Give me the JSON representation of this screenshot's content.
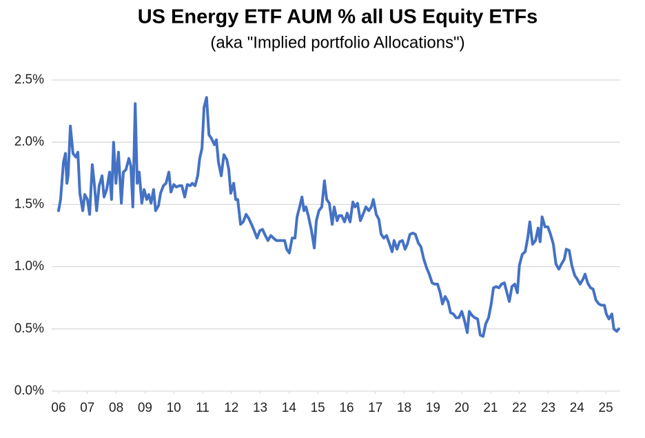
{
  "chart_data": {
    "type": "line",
    "title": "US Energy ETF AUM % all US Equity ETFs",
    "subtitle": "(aka \"Implied portfolio Allocations\")",
    "color": "#4472c4",
    "grid": true,
    "x": [
      2006.0,
      2006.07,
      2006.17,
      2006.24,
      2006.29,
      2006.33,
      2006.41,
      2006.5,
      2006.6,
      2006.67,
      2006.74,
      2006.84,
      2006.91,
      2007.0,
      2007.08,
      2007.17,
      2007.24,
      2007.32,
      2007.41,
      2007.51,
      2007.58,
      2007.67,
      2007.77,
      2007.84,
      2007.91,
      2007.99,
      2008.08,
      2008.18,
      2008.25,
      2008.34,
      2008.44,
      2008.51,
      2008.58,
      2008.66,
      2008.73,
      2008.8,
      2008.89,
      2008.97,
      2009.06,
      2009.13,
      2009.21,
      2009.3,
      2009.37,
      2009.47,
      2009.54,
      2009.64,
      2009.73,
      2009.83,
      2009.9,
      2010.0,
      2010.09,
      2010.19,
      2010.28,
      2010.38,
      2010.47,
      2010.57,
      2010.64,
      2010.74,
      2010.83,
      2010.9,
      2010.98,
      2011.05,
      2011.14,
      2011.22,
      2011.31,
      2011.41,
      2011.48,
      2011.55,
      2011.65,
      2011.74,
      2011.84,
      2011.91,
      2011.98,
      2012.08,
      2012.15,
      2012.22,
      2012.32,
      2012.41,
      2012.51,
      2012.6,
      2012.7,
      2012.79,
      2012.89,
      2012.99,
      2013.08,
      2013.18,
      2013.27,
      2013.37,
      2013.46,
      2013.56,
      2013.66,
      2013.75,
      2013.85,
      2013.92,
      2014.01,
      2014.11,
      2014.21,
      2014.28,
      2014.37,
      2014.45,
      2014.52,
      2014.59,
      2014.68,
      2014.78,
      2014.88,
      2014.95,
      2015.04,
      2015.14,
      2015.23,
      2015.31,
      2015.4,
      2015.5,
      2015.57,
      2015.67,
      2015.74,
      2015.83,
      2015.93,
      2016.02,
      2016.12,
      2016.22,
      2016.29,
      2016.38,
      2016.48,
      2016.57,
      2016.67,
      2016.77,
      2016.86,
      2016.93,
      2017.03,
      2017.12,
      2017.2,
      2017.29,
      2017.39,
      2017.48,
      2017.58,
      2017.65,
      2017.75,
      2017.84,
      2017.94,
      2018.03,
      2018.11,
      2018.2,
      2018.3,
      2018.39,
      2018.49,
      2018.58,
      2018.68,
      2018.78,
      2018.87,
      2018.97,
      2019.06,
      2019.16,
      2019.25,
      2019.33,
      2019.42,
      2019.52,
      2019.61,
      2019.71,
      2019.8,
      2019.9,
      2020.0,
      2020.09,
      2020.19,
      2020.26,
      2020.35,
      2020.45,
      2020.55,
      2020.64,
      2020.74,
      2020.83,
      2020.93,
      2021.02,
      2021.1,
      2021.19,
      2021.29,
      2021.38,
      2021.48,
      2021.57,
      2021.65,
      2021.74,
      2021.84,
      2021.93,
      2022.0,
      2022.1,
      2022.2,
      2022.29,
      2022.36,
      2022.46,
      2022.56,
      2022.65,
      2022.72,
      2022.79,
      2022.89,
      2022.99,
      2023.08,
      2023.18,
      2023.27,
      2023.37,
      2023.46,
      2023.56,
      2023.63,
      2023.73,
      2023.82,
      2023.92,
      2024.01,
      2024.11,
      2024.21,
      2024.28,
      2024.37,
      2024.47,
      2024.56,
      2024.66,
      2024.76,
      2024.85,
      2024.95,
      2025.02,
      2025.11,
      2025.21,
      2025.28,
      2025.38,
      2025.45
    ],
    "values": [
      1.45,
      1.54,
      1.84,
      1.91,
      1.67,
      1.73,
      2.13,
      1.91,
      1.88,
      1.92,
      1.59,
      1.45,
      1.58,
      1.54,
      1.42,
      1.82,
      1.67,
      1.45,
      1.65,
      1.73,
      1.56,
      1.62,
      1.76,
      1.54,
      2.0,
      1.67,
      1.92,
      1.51,
      1.76,
      1.78,
      1.87,
      1.81,
      1.48,
      2.31,
      1.67,
      1.76,
      1.51,
      1.62,
      1.54,
      1.58,
      1.51,
      1.62,
      1.45,
      1.49,
      1.59,
      1.65,
      1.67,
      1.76,
      1.6,
      1.66,
      1.64,
      1.65,
      1.65,
      1.56,
      1.66,
      1.65,
      1.67,
      1.65,
      1.73,
      1.87,
      1.95,
      2.28,
      2.36,
      2.06,
      2.03,
      1.98,
      2.02,
      1.84,
      1.73,
      1.9,
      1.86,
      1.78,
      1.59,
      1.67,
      1.54,
      1.54,
      1.34,
      1.36,
      1.42,
      1.39,
      1.34,
      1.29,
      1.23,
      1.29,
      1.3,
      1.25,
      1.21,
      1.25,
      1.23,
      1.21,
      1.21,
      1.21,
      1.21,
      1.14,
      1.11,
      1.23,
      1.23,
      1.4,
      1.48,
      1.56,
      1.45,
      1.48,
      1.4,
      1.29,
      1.15,
      1.37,
      1.45,
      1.48,
      1.69,
      1.54,
      1.51,
      1.34,
      1.48,
      1.37,
      1.41,
      1.41,
      1.36,
      1.43,
      1.36,
      1.52,
      1.48,
      1.51,
      1.37,
      1.42,
      1.48,
      1.45,
      1.48,
      1.54,
      1.42,
      1.38,
      1.26,
      1.23,
      1.25,
      1.19,
      1.12,
      1.21,
      1.14,
      1.2,
      1.21,
      1.14,
      1.18,
      1.26,
      1.27,
      1.26,
      1.19,
      1.16,
      1.06,
      0.99,
      0.94,
      0.87,
      0.86,
      0.86,
      0.79,
      0.7,
      0.76,
      0.72,
      0.63,
      0.62,
      0.59,
      0.59,
      0.64,
      0.57,
      0.47,
      0.64,
      0.61,
      0.59,
      0.58,
      0.45,
      0.44,
      0.54,
      0.59,
      0.7,
      0.83,
      0.84,
      0.83,
      0.86,
      0.87,
      0.79,
      0.72,
      0.84,
      0.86,
      0.79,
      1.01,
      1.1,
      1.12,
      1.23,
      1.36,
      1.18,
      1.21,
      1.31,
      1.2,
      1.4,
      1.32,
      1.32,
      1.26,
      1.18,
      1.02,
      0.98,
      1.02,
      1.06,
      1.14,
      1.13,
      1.01,
      0.93,
      0.9,
      0.86,
      0.9,
      0.94,
      0.87,
      0.83,
      0.82,
      0.73,
      0.7,
      0.69,
      0.69,
      0.62,
      0.58,
      0.62,
      0.5,
      0.48,
      0.5
    ],
    "xlim": [
      2006,
      2025.5
    ],
    "xticks": [
      {
        "value": 2006,
        "label": "06"
      },
      {
        "value": 2007,
        "label": "07"
      },
      {
        "value": 2008,
        "label": "08"
      },
      {
        "value": 2009,
        "label": "09"
      },
      {
        "value": 2010,
        "label": "10"
      },
      {
        "value": 2011,
        "label": "11"
      },
      {
        "value": 2012,
        "label": "12"
      },
      {
        "value": 2013,
        "label": "13"
      },
      {
        "value": 2014,
        "label": "14"
      },
      {
        "value": 2015,
        "label": "15"
      },
      {
        "value": 2016,
        "label": "16"
      },
      {
        "value": 2017,
        "label": "17"
      },
      {
        "value": 2018,
        "label": "18"
      },
      {
        "value": 2019,
        "label": "19"
      },
      {
        "value": 2020,
        "label": "20"
      },
      {
        "value": 2021,
        "label": "21"
      },
      {
        "value": 2022,
        "label": "22"
      },
      {
        "value": 2023,
        "label": "23"
      },
      {
        "value": 2024,
        "label": "24"
      },
      {
        "value": 2025,
        "label": "25"
      }
    ],
    "ylim": [
      0,
      2.5
    ],
    "yticks": [
      {
        "value": 0,
        "label": "0.0%"
      },
      {
        "value": 0.5,
        "label": "0.5%"
      },
      {
        "value": 1,
        "label": "1.0%"
      },
      {
        "value": 1.5,
        "label": "1.5%"
      },
      {
        "value": 2,
        "label": "2.0%"
      },
      {
        "value": 2.5,
        "label": "2.5%"
      }
    ]
  }
}
